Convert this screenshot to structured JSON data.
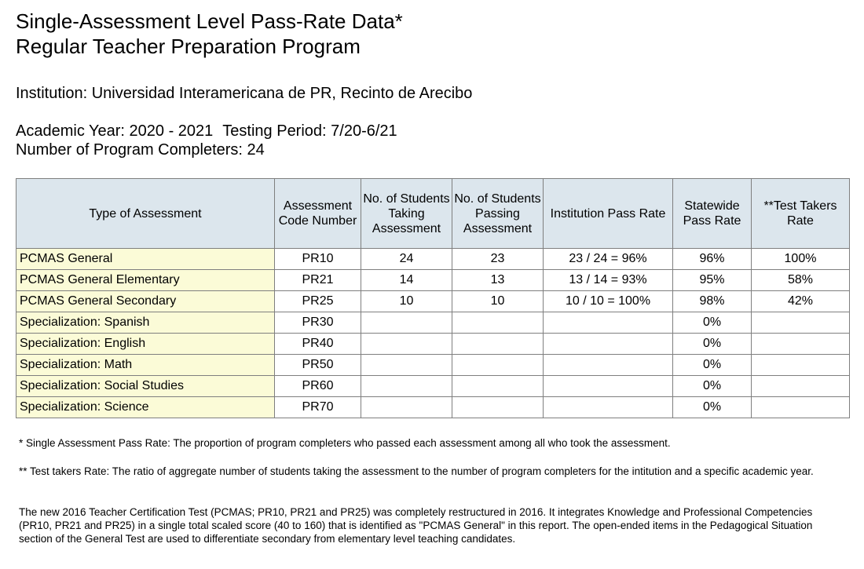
{
  "header": {
    "title_line1": "Single-Assessment Level Pass-Rate Data*",
    "title_line2": "Regular Teacher Preparation Program"
  },
  "info": {
    "institution": "Institution: Universidad Interamericana de PR, Recinto de Arecibo",
    "academic_year": "Academic Year: 2020 - 2021",
    "testing_period": "Testing Period: 7/20-6/21",
    "completers": "Number of Program Completers: 24"
  },
  "table": {
    "headers": [
      "Type of Assessment",
      "Assessment Code Number",
      "No. of Students Taking Assessment",
      "No. of Students Passing Assessment",
      "Institution Pass Rate",
      "Statewide Pass Rate",
      "**Test Takers Rate"
    ],
    "rows": [
      [
        "PCMAS General",
        "PR10",
        "24",
        "23",
        "23 / 24 = 96%",
        "96%",
        "100%"
      ],
      [
        "PCMAS General Elementary",
        "PR21",
        "14",
        "13",
        "13 / 14 = 93%",
        "95%",
        "58%"
      ],
      [
        "PCMAS General Secondary",
        "PR25",
        "10",
        "10",
        "10 / 10 = 100%",
        "98%",
        "42%"
      ],
      [
        "Specialization: Spanish",
        "PR30",
        "",
        "",
        "",
        "0%",
        ""
      ],
      [
        "Specialization: English",
        "PR40",
        "",
        "",
        "",
        "0%",
        ""
      ],
      [
        "Specialization: Math",
        "PR50",
        "",
        "",
        "",
        "0%",
        ""
      ],
      [
        "Specialization: Social Studies",
        "PR60",
        "",
        "",
        "",
        "0%",
        ""
      ],
      [
        "Specialization: Science",
        "PR70",
        "",
        "",
        "",
        "0%",
        ""
      ]
    ]
  },
  "notes": {
    "note1": "* Single Assessment Pass Rate: The proportion of program completers who passed each assessment among all who took the assessment.",
    "note2": "** Test takers Rate: The ratio of aggregate number of students taking the assessment to the number of program completers for the intitution and a specific academic year.",
    "note3": "The new 2016 Teacher Certification Test (PCMAS; PR10, PR21 and PR25) was completely restructured in 2016. It integrates Knowledge and Professional Competencies (PR10, PR21 and PR25) in a single total scaled score (40 to 160) that is identified as \"PCMAS General\" in this report. The open-ended items in the Pedagogical Situation section of the General Test are used to differentiate secondary from elementary level teaching candidates."
  },
  "colors": {
    "header_bg": "#dce6ed",
    "type_cell_bg": "#fbfbd7",
    "border": "#7f7f7f"
  }
}
